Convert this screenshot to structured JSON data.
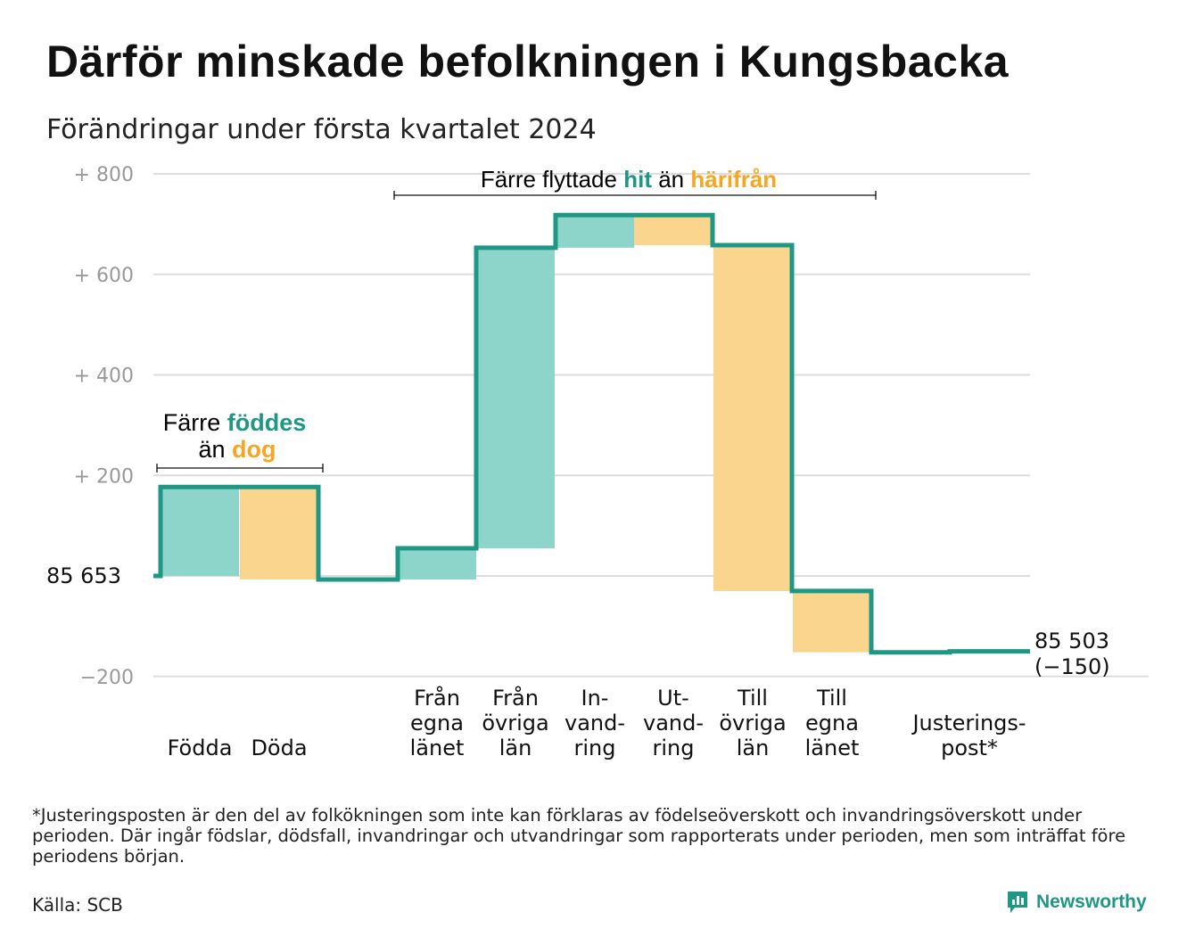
{
  "title": "Därför minskade befolkningen i Kungsbacka",
  "subtitle": "Förändringar under första kvartalet 2024",
  "colors": {
    "increase": "#8dd4cb",
    "decrease": "#f9d58e",
    "step_line": "#1e9784",
    "highlight_hit": "#1e9784",
    "highlight_away": "#f5a623",
    "grid": "#dddddd",
    "tick": "#999999"
  },
  "chart_data": {
    "type": "waterfall",
    "title": "Därför minskade befolkningen i Kungsbacka",
    "subtitle": "Förändringar under första kvartalet 2024",
    "ylim": [
      -200,
      800
    ],
    "y_ticks": [
      {
        "value": 800,
        "label": "+ 800"
      },
      {
        "value": 600,
        "label": "+ 600"
      },
      {
        "value": 400,
        "label": "+ 400"
      },
      {
        "value": 200,
        "label": "+ 200"
      },
      {
        "value": -200,
        "label": "−200"
      }
    ],
    "start_value": 85653,
    "start_label": "85  653",
    "end_label": "85 503",
    "end_change_label": "(−150)",
    "grid": true,
    "bars": [
      {
        "category": "Födda",
        "label_lines": [
          "Födda"
        ],
        "from": 0,
        "to": 177,
        "kind": "increase"
      },
      {
        "category": "Döda",
        "label_lines": [
          "Döda"
        ],
        "from": 177,
        "to": -7,
        "kind": "decrease"
      },
      {
        "category": "Från egna länet",
        "label_lines": [
          "Från",
          "egna",
          "länet"
        ],
        "from": -7,
        "to": 55,
        "kind": "increase"
      },
      {
        "category": "Från övriga län",
        "label_lines": [
          "Från",
          "övriga",
          "län"
        ],
        "from": 55,
        "to": 653,
        "kind": "increase"
      },
      {
        "category": "Invandring",
        "label_lines": [
          "In-",
          "vand-",
          "ring"
        ],
        "from": 653,
        "to": 718,
        "kind": "increase"
      },
      {
        "category": "Utvandring",
        "label_lines": [
          "Ut-",
          "vand-",
          "ring"
        ],
        "from": 718,
        "to": 658,
        "kind": "decrease"
      },
      {
        "category": "Till övriga län",
        "label_lines": [
          "Till",
          "övriga",
          "län"
        ],
        "from": 658,
        "to": -30,
        "kind": "decrease"
      },
      {
        "category": "Till egna länet",
        "label_lines": [
          "Till",
          "egna",
          "länet"
        ],
        "from": -30,
        "to": -152,
        "kind": "decrease"
      },
      {
        "category": "Justeringspost*",
        "label_lines": [
          "Justerings-",
          "post*"
        ],
        "from": -152,
        "to": -150,
        "kind": "adjustment"
      }
    ],
    "annotations": [
      {
        "id": "births",
        "parts": [
          "Färre ",
          "föddes",
          "än ",
          "dog"
        ]
      },
      {
        "id": "moves",
        "parts": [
          "Färre flyttade ",
          "hit",
          " än ",
          "härifrån"
        ]
      }
    ]
  },
  "footnote": "*Justeringsposten är den del av folkökningen som inte kan förklaras av födelseöverskott och invandringsöverskott under perioden. Där ingår födslar, dödsfall, invandringar och utvandringar som rapporterats under perioden, men som inträffat före periodens början.",
  "source": "Källa: SCB",
  "brand": {
    "name": "Newsworthy",
    "icon": "newsworthy-logo-icon"
  }
}
